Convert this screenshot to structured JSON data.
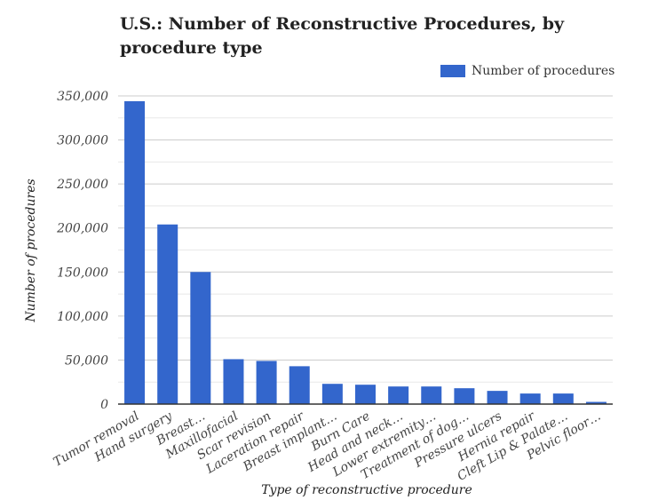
{
  "chart_data": {
    "type": "bar",
    "title": "U.S.: Number of Reconstructive Procedures, by procedure type",
    "xlabel": "Type of reconstructive procedure",
    "ylabel": "Number of procedures",
    "ylim": [
      0,
      350000
    ],
    "yticks": [
      "0",
      "50,000",
      "100,000",
      "150,000",
      "200,000",
      "250,000",
      "300,000",
      "350,000"
    ],
    "grid": true,
    "legend_position": "top-right",
    "color": "#3366cc",
    "categories": [
      "Tumor removal",
      "Hand surgery",
      "Breast…",
      "Maxillofacial",
      "Scar revision",
      "Laceration repair",
      "Breast implant…",
      "Burn Care",
      "Head and neck…",
      "Lower extremity…",
      "Treatment of dog…",
      "Pressure ulcers",
      "Hernia repair",
      "Cleft Lip & Palate…",
      "Pelvic floor…"
    ],
    "series": [
      {
        "name": "Number of procedures",
        "values": [
          344000,
          204000,
          150000,
          51000,
          49000,
          43000,
          23000,
          22000,
          20000,
          20000,
          18000,
          15000,
          12000,
          12000,
          2500
        ]
      }
    ]
  }
}
